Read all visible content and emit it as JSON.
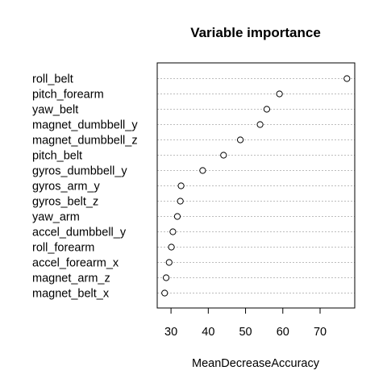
{
  "chart_data": {
    "type": "scatter",
    "title": "Variable importance",
    "xlabel": "MeanDecreaseAccuracy",
    "ylabel": "",
    "categories": [
      "roll_belt",
      "pitch_forearm",
      "yaw_belt",
      "magnet_dumbbell_y",
      "magnet_dumbbell_z",
      "pitch_belt",
      "gyros_dumbbell_y",
      "gyros_arm_y",
      "gyros_belt_z",
      "yaw_arm",
      "accel_dumbbell_y",
      "roll_forearm",
      "accel_forearm_x",
      "magnet_arm_z",
      "magnet_belt_x"
    ],
    "values": [
      77.2,
      59.1,
      55.7,
      53.9,
      48.6,
      44.1,
      38.5,
      32.7,
      32.5,
      31.7,
      30.5,
      30.1,
      29.5,
      28.7,
      28.3
    ],
    "xlim": [
      26.3,
      79.3
    ],
    "xticks": [
      30,
      40,
      50,
      60,
      70
    ],
    "grid": "dotted horizontal lines",
    "marker": "open circle"
  }
}
